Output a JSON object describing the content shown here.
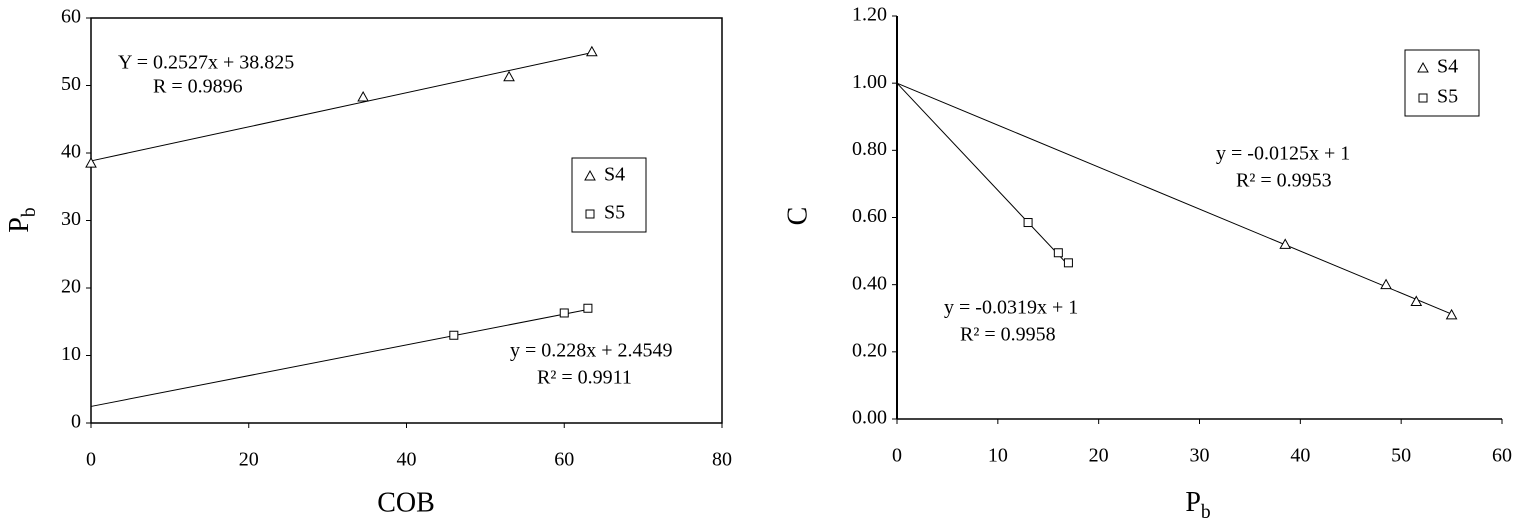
{
  "chart_data": [
    {
      "type": "scatter",
      "x_label": "COB",
      "y_label": {
        "main": "P",
        "sub": "b"
      },
      "xlim": [
        0,
        80
      ],
      "xticks": [
        0,
        20,
        40,
        60,
        80
      ],
      "ylim": [
        0,
        60
      ],
      "yticks": [
        0,
        10,
        20,
        30,
        40,
        50,
        60
      ],
      "legend_position": "right",
      "series": [
        {
          "name": "S4",
          "marker": "triangle",
          "color": "#000000",
          "x": [
            0,
            34.5,
            53,
            63.5
          ],
          "values": [
            38.5,
            48.3,
            51.3,
            55
          ]
        },
        {
          "name": "S5",
          "marker": "square",
          "color": "#000000",
          "x": [
            46,
            60,
            63
          ],
          "values": [
            13,
            16.3,
            17
          ]
        }
      ],
      "fits": [
        {
          "slope": 0.2527,
          "intercept": 38.825,
          "x": [
            0,
            63.5
          ],
          "equation": "Y = 0.2527x + 38.825",
          "fit_stat": "R = 0.9896"
        },
        {
          "slope": 0.228,
          "intercept": 2.4549,
          "x": [
            0,
            63
          ],
          "equation": "y = 0.228x + 2.4549",
          "fit_stat": "R² = 0.9911"
        }
      ]
    },
    {
      "type": "scatter",
      "x_label": {
        "main": "P",
        "sub": "b"
      },
      "y_label": "C",
      "xlim": [
        0,
        60
      ],
      "xticks": [
        0,
        10,
        20,
        30,
        40,
        50,
        60
      ],
      "ylim": [
        0,
        1.2
      ],
      "yticks": [
        {
          "value": 0,
          "label": "0.00"
        },
        {
          "value": 0.2,
          "label": "0.20"
        },
        {
          "value": 0.4,
          "label": "0.40"
        },
        {
          "value": 0.6,
          "label": "0.60"
        },
        {
          "value": 0.8,
          "label": "0.80"
        },
        {
          "value": 1.0,
          "label": "1.00"
        },
        {
          "value": 1.2,
          "label": "1.20"
        }
      ],
      "legend_position": "upper right",
      "series": [
        {
          "name": "S4",
          "marker": "triangle",
          "color": "#000000",
          "x": [
            38.5,
            48.5,
            51.5,
            55
          ],
          "values": [
            0.52,
            0.4,
            0.35,
            0.31
          ]
        },
        {
          "name": "S5",
          "marker": "square",
          "color": "#000000",
          "x": [
            13,
            16,
            17
          ],
          "values": [
            0.585,
            0.495,
            0.465
          ]
        }
      ],
      "fits": [
        {
          "slope": -0.0125,
          "intercept": 1,
          "x": [
            0,
            55
          ],
          "equation": "y = -0.0125x + 1",
          "fit_stat": "R² = 0.9953"
        },
        {
          "slope": -0.0319,
          "intercept": 1,
          "x": [
            0,
            17
          ],
          "equation": "y = -0.0319x + 1",
          "fit_stat": "R² = 0.9958"
        }
      ]
    }
  ]
}
